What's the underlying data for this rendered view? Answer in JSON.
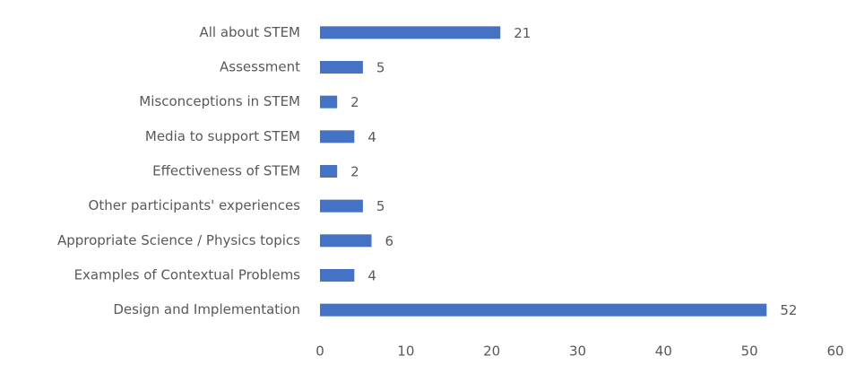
{
  "chart_data": {
    "type": "bar",
    "orientation": "horizontal",
    "categories": [
      "All about STEM",
      "Assessment",
      "Misconceptions in STEM",
      "Media to support STEM",
      "Effectiveness of STEM",
      "Other participants' experiences",
      "Appropriate Science / Physics topics",
      "Examples of Contextual Problems",
      "Design and Implementation"
    ],
    "values": [
      21,
      5,
      2,
      4,
      2,
      5,
      6,
      4,
      52
    ],
    "color": "#4472c4",
    "xlim": [
      0,
      60
    ],
    "xticks": [
      0,
      10,
      20,
      30,
      40,
      50,
      60
    ],
    "grid": false
  }
}
